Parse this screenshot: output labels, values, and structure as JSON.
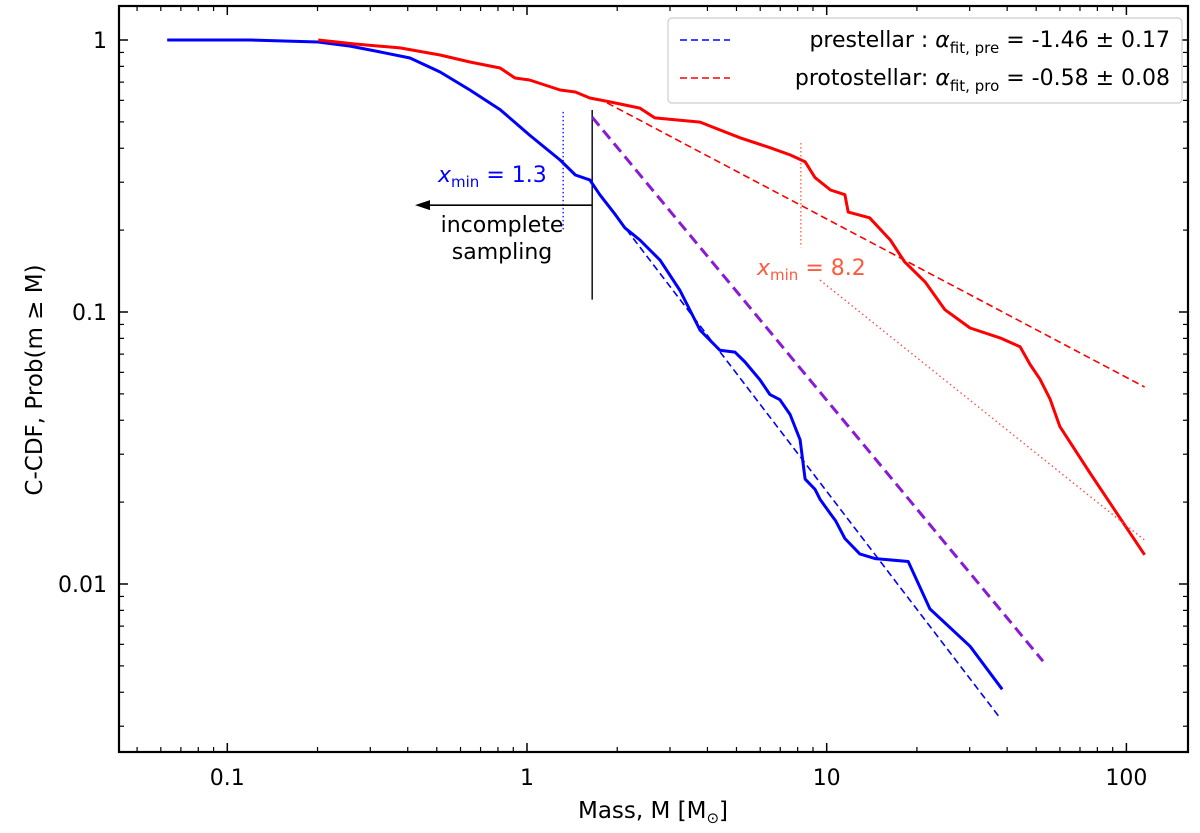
{
  "chart_data": {
    "type": "line",
    "title": "",
    "xlabel": "Mass, M [M",
    "xlabel_symbol": "⊙",
    "xlabel_end": "]",
    "ylabel": "C-CDF, Prob(m ≥ M)",
    "xscale": "log",
    "yscale": "log",
    "xlim": [
      0.043,
      160
    ],
    "ylim": [
      0.0024,
      1.32
    ],
    "grid": false,
    "legend_position": "top-right",
    "x_ticks": [
      {
        "value": 0.1,
        "label": "0.1"
      },
      {
        "value": 1,
        "label": "1"
      },
      {
        "value": 10,
        "label": "10"
      },
      {
        "value": 100,
        "label": "100"
      }
    ],
    "y_ticks": [
      {
        "value": 1,
        "label": "1"
      },
      {
        "value": 0.1,
        "label": "0.1"
      },
      {
        "value": 0.01,
        "label": "0.01"
      }
    ],
    "series": [
      {
        "name": "prestellar C-CDF",
        "color": "#0000ff",
        "style": "solid",
        "x": [
          0.063,
          0.119,
          0.201,
          0.257,
          0.323,
          0.407,
          0.513,
          0.645,
          0.813,
          1.02,
          1.29,
          1.45,
          1.62,
          1.75,
          1.97,
          2.12,
          2.38,
          2.78,
          3.24,
          3.78,
          4.4,
          4.94,
          5.34,
          5.99,
          6.47,
          6.98,
          7.55,
          8.15,
          8.47,
          9.14,
          9.5,
          10.3,
          10.7,
          11.5,
          12.9,
          14.5,
          18.7,
          22.1,
          30.1,
          38.5
        ],
        "y": [
          1,
          1,
          0.983,
          0.95,
          0.904,
          0.859,
          0.763,
          0.655,
          0.555,
          0.447,
          0.362,
          0.319,
          0.306,
          0.27,
          0.228,
          0.204,
          0.184,
          0.155,
          0.12,
          0.0857,
          0.0724,
          0.0712,
          0.0655,
          0.0563,
          0.0497,
          0.0476,
          0.042,
          0.0339,
          0.0243,
          0.0223,
          0.0205,
          0.0181,
          0.0171,
          0.0147,
          0.0129,
          0.0124,
          0.0121,
          0.0081,
          0.0059,
          0.0041
        ]
      },
      {
        "name": "protostellar C-CDF",
        "color": "#ff0000",
        "style": "solid",
        "x": [
          0.201,
          0.267,
          0.377,
          0.513,
          0.645,
          0.813,
          0.912,
          1.02,
          1.29,
          1.45,
          1.62,
          1.89,
          2.38,
          2.67,
          3.78,
          4.4,
          5.14,
          6.47,
          7.55,
          8.47,
          9.14,
          10.3,
          11.5,
          11.8,
          13.9,
          16.3,
          18.2,
          21.3,
          24.8,
          30.1,
          37.9,
          44.2,
          47.7,
          51.5,
          55.6,
          60.0,
          75.6,
          115
        ],
        "y": [
          1,
          0.967,
          0.935,
          0.881,
          0.83,
          0.789,
          0.725,
          0.713,
          0.655,
          0.644,
          0.612,
          0.592,
          0.562,
          0.517,
          0.499,
          0.467,
          0.437,
          0.402,
          0.378,
          0.357,
          0.312,
          0.281,
          0.27,
          0.233,
          0.222,
          0.184,
          0.153,
          0.129,
          0.102,
          0.0873,
          0.0803,
          0.0745,
          0.0641,
          0.0566,
          0.0479,
          0.0379,
          0.0256,
          0.0128
        ]
      },
      {
        "name": "prestellar fit",
        "color": "#0000ff",
        "style": "dashed",
        "x": [
          1.75,
          38
        ],
        "y": [
          0.27,
          0.0032
        ]
      },
      {
        "name": "protostellar fit",
        "color": "#ff0000",
        "style": "dashed",
        "x": [
          1.85,
          115
        ],
        "y": [
          0.587,
          0.053
        ]
      },
      {
        "name": "protostellar fit (steep)",
        "color": "#ff4d4d",
        "style": "dotted",
        "x": [
          9.5,
          115
        ],
        "y": [
          0.131,
          0.0145
        ]
      },
      {
        "name": "reference slope",
        "color": "#8a1ad6",
        "style": "dashed-thick",
        "x": [
          1.65,
          52.7
        ],
        "y": [
          0.52,
          0.0052
        ]
      }
    ],
    "legend": [
      {
        "color": "#0000ff",
        "name": "prestellar : ",
        "alpha": "α",
        "sub": "fit, pre",
        "value": " = -1.46 ± 0.17"
      },
      {
        "color": "#ff0000",
        "name": "protostellar: ",
        "alpha": "α",
        "sub": "fit, pro",
        "value": " = -0.58 ± 0.08"
      }
    ],
    "annotations": {
      "xmin_pre": {
        "var": "x",
        "sub": "min",
        "value": " = 1.3",
        "x_value": 1.32,
        "color": "#0000ff"
      },
      "xmin_pro": {
        "var": "x",
        "sub": "min",
        "value": " = 8.2",
        "x_value": 8.2,
        "color": "#ff5a3c"
      },
      "completeness_limit": {
        "x_value": 1.65,
        "line1": "incomplete",
        "line2": "sampling"
      }
    }
  }
}
